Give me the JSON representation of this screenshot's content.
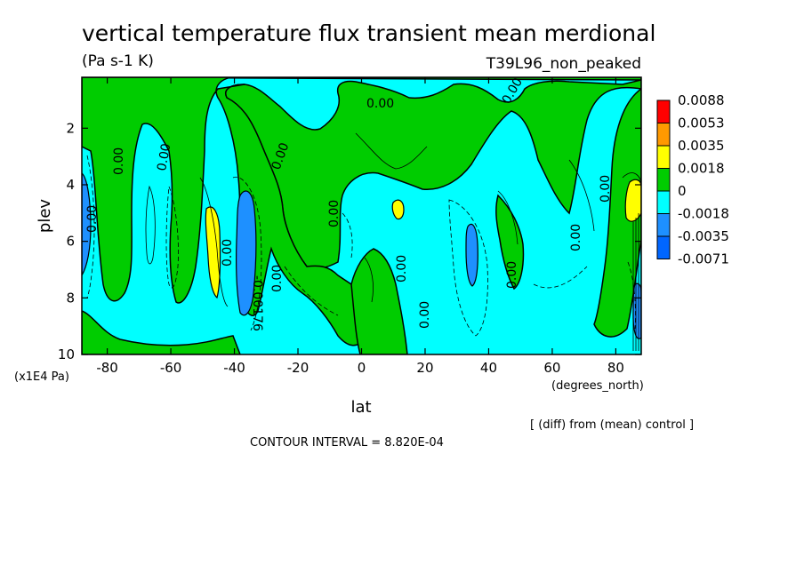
{
  "chart_data": {
    "type": "contour",
    "title": "vertical temperature flux transient mean merdional",
    "units": "(Pa s-1 K)",
    "run_label": "T39L96_non_peaked",
    "xlabel": "lat",
    "x_unit_label": "(degrees_north)",
    "ylabel": "plev",
    "y_unit_label": "(x1E4 Pa)",
    "x_ticks": [
      "-80",
      "-60",
      "-40",
      "-20",
      "0",
      "20",
      "40",
      "60",
      "80"
    ],
    "y_ticks": [
      "2",
      "4",
      "6",
      "8",
      "10"
    ],
    "xlim": [
      -88,
      88
    ],
    "ylim": [
      0.2,
      10
    ],
    "y_inverted": true,
    "contour_interval_text": "CONTOUR INTERVAL = 8.820E-04",
    "footnote": "[ (diff) from (mean) control ]",
    "colorbar": {
      "levels": [
        "0.0088",
        "0.0053",
        "0.0035",
        "0.0018",
        "0",
        "-0.0018",
        "-0.0035",
        "-0.0071"
      ],
      "colors": [
        "#ff0000",
        "#ff9900",
        "#ffff00",
        "#00cc00",
        "#00ffff",
        "#1e90ff",
        "#0066ff"
      ]
    },
    "contour_labels": [
      {
        "text": "0.00"
      },
      {
        "text": "0.00"
      },
      {
        "text": "0.00"
      },
      {
        "text": "0.00"
      },
      {
        "text": "0.00"
      },
      {
        "text": "0.00"
      },
      {
        "text": "0.00"
      },
      {
        "text": "0.00"
      },
      {
        "text": "0.00"
      },
      {
        "text": "0.00"
      },
      {
        "text": "0.00"
      },
      {
        "text": "0.00"
      },
      {
        "text": "0.00"
      },
      {
        "text": "0.00"
      },
      {
        "text": "-0.00176"
      }
    ],
    "shading": [
      {
        "class": "0 to 0.0018",
        "color": "#00cc00",
        "lat": 0,
        "plev": 2
      },
      {
        "class": "-0.0018 to 0",
        "color": "#00ffff",
        "lat": 30,
        "plev": 6
      },
      {
        "class": "-0.0035 to -0.0018",
        "color": "#1e90ff",
        "lat": -38,
        "plev": 6.5
      },
      {
        "class": "-0.0035 to -0.0018",
        "color": "#1e90ff",
        "lat": 35,
        "plev": 6.5
      },
      {
        "class": "0.0018 to 0.0035",
        "color": "#ffff00",
        "lat": -46,
        "plev": 6.5
      },
      {
        "class": "0.0018 to 0.0035",
        "color": "#ffff00",
        "lat": 12,
        "plev": 5
      },
      {
        "class": "0.0018 to 0.0035",
        "color": "#ffff00",
        "lat": 86,
        "plev": 5
      }
    ]
  }
}
